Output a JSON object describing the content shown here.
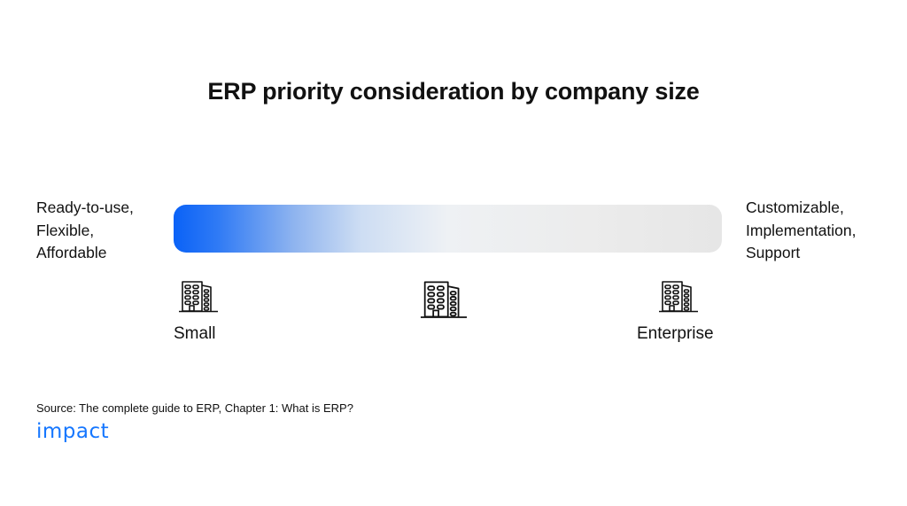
{
  "title": "ERP priority consideration by company size",
  "left_priorities": [
    "Ready-to-use,",
    "Flexible,",
    "Affordable"
  ],
  "right_priorities": [
    "Customizable,",
    "Implementation,",
    "Support"
  ],
  "scale": {
    "start_label": "Small",
    "end_label": "Enterprise",
    "start_color": "#0a62f7",
    "end_color": "#e6e6e6"
  },
  "icons": [
    "building-icon",
    "building-icon",
    "building-icon"
  ],
  "source": "Source: The complete guide to ERP, Chapter 1: What is ERP?",
  "logo_text": "impact",
  "brand_color": "#1677ff"
}
